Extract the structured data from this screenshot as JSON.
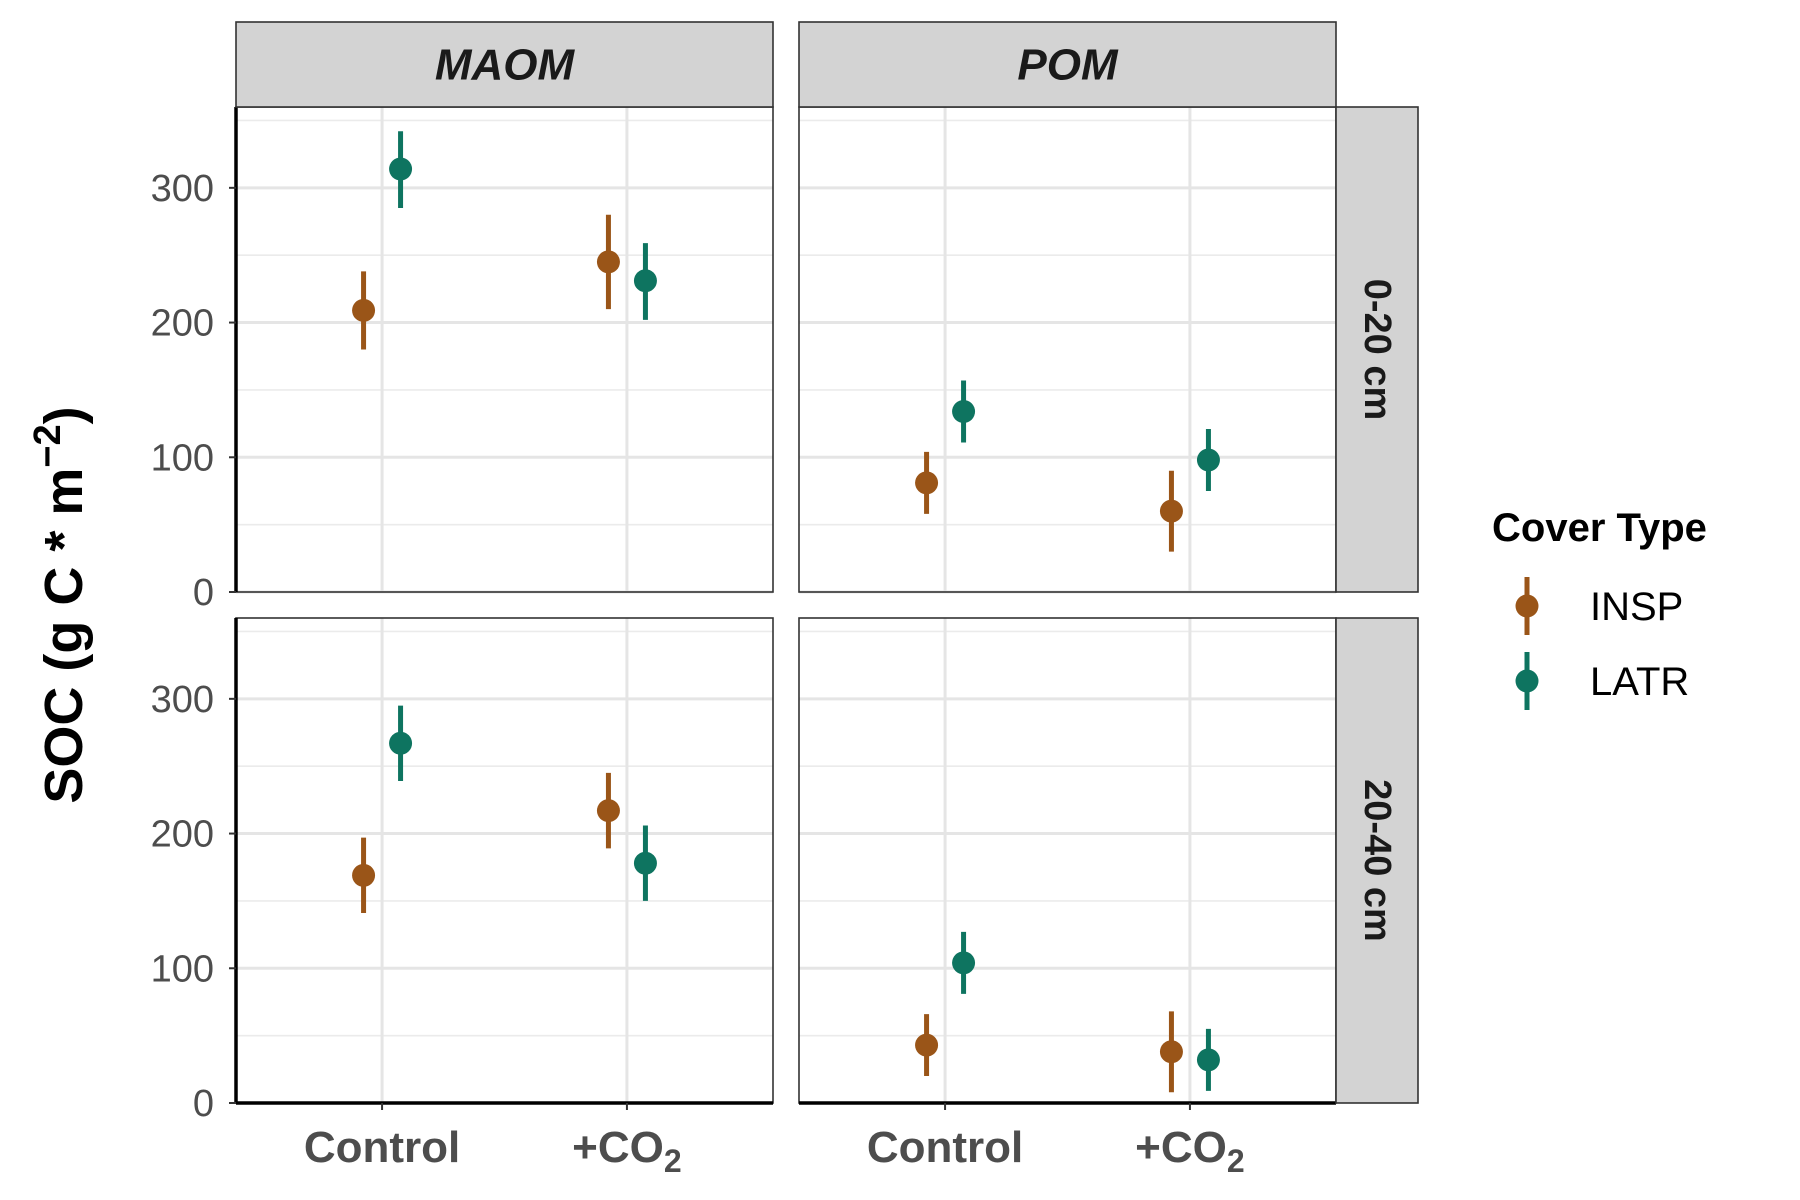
{
  "chart_data": {
    "type": "scatter",
    "subtype": "pointrange",
    "facet_cols": [
      "MAOM",
      "POM"
    ],
    "facet_rows": [
      "0-20 cm",
      "20-40 cm"
    ],
    "categories": [
      "Control",
      "+CO2"
    ],
    "category_labels": [
      {
        "main": "Control",
        "sub": ""
      },
      {
        "main": "+CO",
        "sub": "2"
      }
    ],
    "ylabel": {
      "main": "SOC (g C * m",
      "sup": "−2",
      "close": ")"
    },
    "ylim": [
      0,
      360
    ],
    "yticks": [
      0,
      100,
      200,
      300
    ],
    "grid": true,
    "legend": {
      "title": "Cover Type",
      "placement": "right",
      "entries": [
        {
          "name": "INSP",
          "color": "#9A5518"
        },
        {
          "name": "LATR",
          "color": "#0E7460"
        }
      ]
    },
    "panels": [
      {
        "facet_col": "MAOM",
        "facet_row": "0-20 cm",
        "series": [
          {
            "name": "INSP",
            "mean": [
              209,
              245
            ],
            "lower": [
              180,
              210
            ],
            "upper": [
              238,
              280
            ]
          },
          {
            "name": "LATR",
            "mean": [
              314,
              231
            ],
            "lower": [
              285,
              202
            ],
            "upper": [
              342,
              259
            ]
          }
        ]
      },
      {
        "facet_col": "POM",
        "facet_row": "0-20 cm",
        "series": [
          {
            "name": "INSP",
            "mean": [
              81,
              60
            ],
            "lower": [
              58,
              30
            ],
            "upper": [
              104,
              90
            ]
          },
          {
            "name": "LATR",
            "mean": [
              134,
              98
            ],
            "lower": [
              111,
              75
            ],
            "upper": [
              157,
              121
            ]
          }
        ]
      },
      {
        "facet_col": "MAOM",
        "facet_row": "20-40 cm",
        "series": [
          {
            "name": "INSP",
            "mean": [
              169,
              217
            ],
            "lower": [
              141,
              189
            ],
            "upper": [
              197,
              245
            ]
          },
          {
            "name": "LATR",
            "mean": [
              267,
              178
            ],
            "lower": [
              239,
              150
            ],
            "upper": [
              295,
              206
            ]
          }
        ]
      },
      {
        "facet_col": "POM",
        "facet_row": "20-40 cm",
        "series": [
          {
            "name": "INSP",
            "mean": [
              43,
              38
            ],
            "lower": [
              20,
              8
            ],
            "upper": [
              66,
              68
            ]
          },
          {
            "name": "LATR",
            "mean": [
              104,
              32
            ],
            "lower": [
              81,
              9
            ],
            "upper": [
              127,
              55
            ]
          }
        ]
      }
    ]
  }
}
